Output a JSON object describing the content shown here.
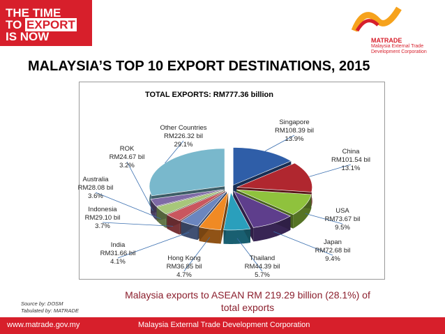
{
  "header": {
    "slogan_line1": "THE TIME",
    "slogan_line2_prefix": "TO ",
    "slogan_line2_emph": "EXPORT",
    "slogan_line3": "IS NOW",
    "brand_name": "MATRADE",
    "brand_sub1": "Malaysia External Trade",
    "brand_sub2": "Development Corporation"
  },
  "slide": {
    "title": "MALAYSIA’S TOP 10 EXPORT DESTINATIONS, 2015",
    "asean_line1": "Malaysia exports to ASEAN RM 219.29 billion (28.1%) of",
    "asean_line2": "total exports",
    "source_line1": "Source by: DOSM",
    "source_line2": "Tabulated by: MATRADE"
  },
  "footer": {
    "url": "www.matrade.gov.my",
    "org": "Malaysia External Trade Development Corporation"
  },
  "colors": {
    "brand_red": "#d71f2b",
    "asean_text": "#8b1e2c"
  },
  "chart_data": {
    "type": "pie",
    "title": "TOTAL EXPORTS: RM777.36 billion",
    "style": "3d-exploded",
    "slices": [
      {
        "name": "Singapore",
        "value_text": "RM108.39 bil",
        "value": 108.39,
        "percent": "13.9%",
        "color": "#2f5ea8"
      },
      {
        "name": "China",
        "value_text": "RM101.54 bil",
        "value": 101.54,
        "percent": "13.1%",
        "color": "#b0272f"
      },
      {
        "name": "USA",
        "value_text": "RM73.67 bil",
        "value": 73.67,
        "percent": "9.5%",
        "color": "#8fc23d"
      },
      {
        "name": "Japan",
        "value_text": "RM72.68 bil",
        "value": 72.68,
        "percent": "9.4%",
        "color": "#5e3e8c"
      },
      {
        "name": "Thailand",
        "value_text": "RM44.39 bil",
        "value": 44.39,
        "percent": "5.7%",
        "color": "#2a9fbc"
      },
      {
        "name": "Hong Kong",
        "value_text": "RM36.85 bil",
        "value": 36.85,
        "percent": "4.7%",
        "color": "#f08a24"
      },
      {
        "name": "India",
        "value_text": "RM31.66 bil",
        "value": 31.66,
        "percent": "4.1%",
        "color": "#6b86bf"
      },
      {
        "name": "Indonesia",
        "value_text": "RM29.10 bil",
        "value": 29.1,
        "percent": "3.7%",
        "color": "#c9565e"
      },
      {
        "name": "Australia",
        "value_text": "RM28.08 bil",
        "value": 28.08,
        "percent": "3.6%",
        "color": "#a7c77a"
      },
      {
        "name": "ROK",
        "value_text": "RM24.67 bil",
        "value": 24.67,
        "percent": "3.2%",
        "color": "#7e6aa6"
      },
      {
        "name": "Other Countries",
        "value_text": "RM226.32 bil",
        "value": 226.32,
        "percent": "29.1%",
        "color": "#79b8cc"
      }
    ]
  }
}
